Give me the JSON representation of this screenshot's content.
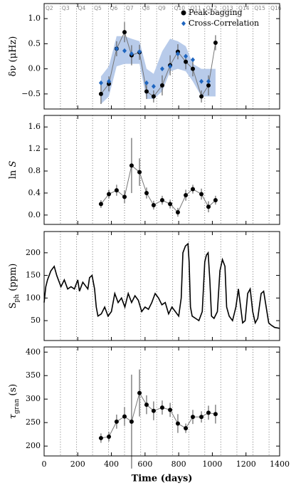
{
  "chart_data": [
    {
      "type": "errorbar",
      "ylabel": [
        {
          "text": "δν (μHz)"
        }
      ],
      "xlim": [
        0,
        1400
      ],
      "xticks": [
        0,
        200,
        400,
        600,
        800,
        1000,
        1200,
        1400
      ],
      "ylim": [
        -0.8,
        1.3
      ],
      "yticks": [
        {
          "value": -0.5,
          "label": "−0.5"
        },
        {
          "value": 0,
          "label": "0.0"
        },
        {
          "value": 0.5,
          "label": "0.5"
        },
        {
          "value": 1,
          "label": "1.0"
        }
      ],
      "quarter_labels": [
        "Q2",
        "Q3",
        "Q4",
        "Q5",
        "Q6",
        "Q7",
        "Q8",
        "Q9",
        "Q10",
        "Q11",
        "Q12",
        "Q13",
        "Q14",
        "Q15",
        "Q16"
      ],
      "quarter_boundaries": [
        97,
        193,
        288,
        383,
        478,
        574,
        669,
        764,
        860,
        955,
        1050,
        1146,
        1241,
        1337
      ],
      "x": [
        338,
        385,
        431,
        478,
        520,
        567,
        609,
        651,
        702,
        749,
        795,
        842,
        884,
        935,
        977,
        1019
      ],
      "band": {
        "color": "#b8cbea",
        "lower": [
          -0.7,
          -0.55,
          0.05,
          0.1,
          0.1,
          0.1,
          -0.6,
          -0.6,
          -0.45,
          -0.05,
          0.0,
          -0.05,
          -0.25,
          -0.55,
          -0.55,
          -0.55
        ],
        "upper": [
          -0.15,
          0.05,
          0.65,
          0.65,
          0.6,
          0.55,
          0.0,
          -0.1,
          0.35,
          0.6,
          0.55,
          0.45,
          0.1,
          0.0,
          0.0,
          0.0
        ]
      },
      "series": [
        {
          "name": "Peak-bagging",
          "color": "#000000",
          "marker": "circle",
          "connect": true,
          "values": [
            -0.5,
            -0.3,
            0.4,
            0.73,
            0.27,
            0.33,
            -0.45,
            -0.55,
            -0.33,
            0.07,
            0.34,
            0.14,
            0.0,
            -0.55,
            -0.33,
            0.52
          ],
          "errors": [
            0.2,
            0.15,
            0.15,
            0.2,
            0.2,
            0.15,
            0.15,
            0.12,
            0.2,
            0.2,
            0.15,
            0.15,
            0.15,
            0.12,
            0.2,
            0.15
          ]
        },
        {
          "name": "Cross-Correlation",
          "color": "#1f66c0",
          "marker": "diamond",
          "connect": false,
          "values": [
            -0.28,
            -0.25,
            0.4,
            0.36,
            0.3,
            0.34,
            -0.28,
            -0.35,
            0.0,
            0.05,
            0.3,
            0.25,
            0.18,
            -0.25,
            -0.25,
            null
          ]
        }
      ],
      "legend": "upper right"
    },
    {
      "type": "errorbar",
      "ylabel": [
        {
          "text": "ln "
        },
        {
          "text": "S",
          "italic": true
        }
      ],
      "xlim": [
        0,
        1400
      ],
      "xticks": [
        0,
        200,
        400,
        600,
        800,
        1000,
        1200,
        1400
      ],
      "ylim": [
        -0.17,
        1.81
      ],
      "yticks": [
        {
          "value": 0,
          "label": "0.0"
        },
        {
          "value": 0.4,
          "label": "0.4"
        },
        {
          "value": 0.8,
          "label": "0.8"
        },
        {
          "value": 1.2,
          "label": "1.2"
        },
        {
          "value": 1.6,
          "label": "1.6"
        }
      ],
      "x": [
        338,
        385,
        431,
        478,
        520,
        567,
        609,
        651,
        702,
        749,
        795,
        842,
        884,
        935,
        977,
        1019
      ],
      "series": [
        {
          "color": "#000000",
          "marker": "circle",
          "connect": true,
          "values": [
            0.2,
            0.38,
            0.45,
            0.33,
            0.9,
            0.78,
            0.4,
            0.18,
            0.27,
            0.2,
            0.05,
            0.36,
            0.47,
            0.38,
            0.15,
            0.27
          ],
          "errors": [
            0.07,
            0.08,
            0.1,
            0.12,
            0.5,
            0.25,
            0.1,
            0.08,
            0.08,
            0.08,
            0.08,
            0.1,
            0.08,
            0.1,
            0.1,
            0.08
          ]
        }
      ]
    },
    {
      "type": "line",
      "ylabel": [
        {
          "text": "S"
        },
        {
          "text": "ph",
          "sub": true
        },
        {
          "text": " (ppm)"
        }
      ],
      "xlim": [
        0,
        1400
      ],
      "xticks": [
        0,
        200,
        400,
        600,
        800,
        1000,
        1200,
        1400
      ],
      "ylim": [
        6,
        247
      ],
      "yticks": [
        50,
        100,
        150,
        200
      ],
      "x": [
        0,
        10,
        20,
        40,
        60,
        75,
        90,
        100,
        120,
        140,
        160,
        180,
        200,
        210,
        230,
        250,
        260,
        270,
        285,
        300,
        310,
        320,
        340,
        360,
        380,
        400,
        420,
        440,
        460,
        480,
        500,
        520,
        540,
        560,
        580,
        600,
        620,
        640,
        660,
        680,
        700,
        720,
        740,
        760,
        780,
        800,
        815,
        825,
        840,
        855,
        862,
        870,
        880,
        900,
        920,
        940,
        955,
        965,
        975,
        985,
        995,
        1010,
        1030,
        1045,
        1060,
        1075,
        1085,
        1100,
        1120,
        1140,
        1155,
        1165,
        1180,
        1195,
        1210,
        1225,
        1240,
        1255,
        1270,
        1290,
        1305,
        1320,
        1335,
        1350,
        1370,
        1400
      ],
      "series": [
        {
          "color": "#000000",
          "values": [
            90,
            125,
            140,
            160,
            170,
            150,
            135,
            125,
            140,
            120,
            125,
            120,
            140,
            115,
            135,
            125,
            120,
            145,
            150,
            120,
            80,
            60,
            65,
            80,
            60,
            70,
            110,
            90,
            100,
            80,
            110,
            90,
            105,
            95,
            70,
            80,
            75,
            90,
            110,
            100,
            85,
            90,
            65,
            80,
            70,
            60,
            100,
            200,
            215,
            220,
            180,
            80,
            60,
            55,
            50,
            70,
            180,
            195,
            200,
            140,
            60,
            55,
            70,
            160,
            185,
            170,
            80,
            60,
            50,
            80,
            120,
            90,
            45,
            50,
            110,
            120,
            70,
            45,
            55,
            110,
            115,
            80,
            45,
            40,
            35,
            33
          ]
        }
      ]
    },
    {
      "type": "errorbar",
      "ylabel": [
        {
          "text": "τ",
          "italic": true
        },
        {
          "text": "gran",
          "sub": true
        },
        {
          "text": " (s)"
        }
      ],
      "xlabel": "Time (days)",
      "xlim": [
        0,
        1400
      ],
      "xticks": [
        0,
        200,
        400,
        600,
        800,
        1000,
        1200,
        1400
      ],
      "ylim": [
        179,
        411
      ],
      "yticks": [
        200,
        250,
        300,
        350,
        400
      ],
      "x": [
        338,
        385,
        431,
        478,
        520,
        567,
        609,
        651,
        702,
        749,
        795,
        842,
        884,
        935,
        977,
        1019
      ],
      "series": [
        {
          "color": "#000000",
          "marker": "circle",
          "connect": true,
          "values": [
            217,
            220,
            252,
            263,
            252,
            313,
            288,
            275,
            282,
            277,
            248,
            238,
            262,
            262,
            271,
            268
          ],
          "errors": [
            10,
            10,
            15,
            20,
            100,
            50,
            20,
            20,
            15,
            15,
            20,
            10,
            15,
            12,
            15,
            20
          ]
        }
      ]
    }
  ]
}
